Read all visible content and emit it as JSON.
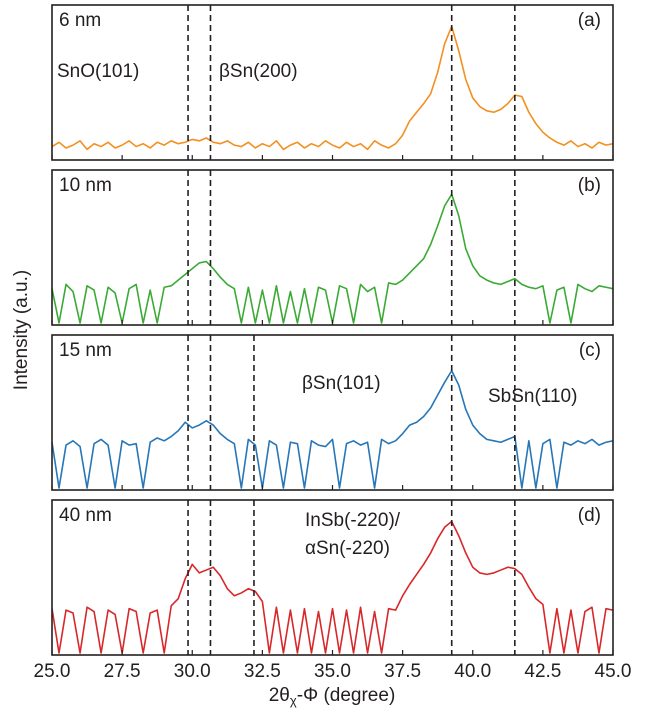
{
  "ylabel": "Intensity (a.u.)",
  "xlabel": {
    "main": "2θ",
    "sub": "χ",
    "rest": "-Φ (degree)"
  },
  "chart_data": [
    {
      "type": "line",
      "label": "6 nm",
      "tag": "(a)",
      "annotations": [
        "SnO(101)",
        "βSn(200)"
      ],
      "vlines": [
        29.85,
        30.65,
        39.25,
        41.5
      ],
      "xlim": [
        25,
        45
      ],
      "ylim": [
        0,
        100
      ],
      "x": [
        25,
        25.25,
        25.5,
        25.75,
        26,
        26.25,
        26.5,
        26.75,
        27,
        27.25,
        27.5,
        27.75,
        28,
        28.25,
        28.5,
        28.75,
        29,
        29.25,
        29.5,
        29.75,
        30,
        30.25,
        30.5,
        30.75,
        31,
        31.25,
        31.5,
        31.75,
        32,
        32.25,
        32.5,
        32.75,
        33,
        33.25,
        33.5,
        33.75,
        34,
        34.25,
        34.5,
        34.75,
        35,
        35.25,
        35.5,
        35.75,
        36,
        36.25,
        36.5,
        36.75,
        37,
        37.25,
        37.5,
        37.75,
        38,
        38.25,
        38.5,
        38.75,
        39,
        39.25,
        39.5,
        39.75,
        40,
        40.25,
        40.5,
        40.75,
        41,
        41.25,
        41.5,
        41.75,
        42,
        42.25,
        42.5,
        42.75,
        43,
        43.25,
        43.5,
        43.75,
        44,
        44.25,
        44.5,
        44.75,
        45
      ],
      "series": [
        {
          "name": "6 nm",
          "color": "#f39021",
          "values": [
            8,
            11,
            7,
            9,
            12,
            6,
            10,
            8,
            11,
            7,
            9,
            12,
            8,
            10,
            7,
            11,
            9,
            12,
            10,
            11,
            13,
            12,
            14,
            11,
            10,
            12,
            9,
            8,
            11,
            7,
            10,
            8,
            12,
            6,
            9,
            11,
            7,
            10,
            8,
            12,
            9,
            7,
            11,
            8,
            10,
            6,
            12,
            9,
            7,
            10,
            16,
            26,
            32,
            38,
            45,
            60,
            80,
            92,
            75,
            55,
            42,
            36,
            33,
            32,
            34,
            38,
            44,
            43,
            32,
            24,
            18,
            14,
            11,
            9,
            12,
            8,
            10,
            7,
            11,
            9,
            10
          ]
        }
      ]
    },
    {
      "type": "line",
      "label": "10 nm",
      "tag": "(b)",
      "annotations": [],
      "vlines": [
        29.85,
        30.65,
        39.25,
        41.5
      ],
      "xlim": [
        25,
        45
      ],
      "ylim": [
        0,
        100
      ],
      "x": [
        25,
        25.25,
        25.5,
        25.75,
        26,
        26.25,
        26.5,
        26.75,
        27,
        27.25,
        27.5,
        27.75,
        28,
        28.25,
        28.5,
        28.75,
        29,
        29.25,
        29.5,
        29.75,
        30,
        30.25,
        30.5,
        30.75,
        31,
        31.25,
        31.5,
        31.75,
        32,
        32.25,
        32.5,
        32.75,
        33,
        33.25,
        33.5,
        33.75,
        34,
        34.25,
        34.5,
        34.75,
        35,
        35.25,
        35.5,
        35.75,
        36,
        36.25,
        36.5,
        36.75,
        37,
        37.25,
        37.5,
        37.75,
        38,
        38.25,
        38.5,
        38.75,
        39,
        39.25,
        39.5,
        39.75,
        40,
        40.25,
        40.5,
        40.75,
        41,
        41.25,
        41.5,
        41.75,
        42,
        42.25,
        42.5,
        42.75,
        43,
        43.25,
        43.5,
        43.75,
        44,
        44.25,
        44.5,
        44.75,
        45
      ],
      "series": [
        {
          "name": "10 nm",
          "color": "#3aaa35",
          "values": [
            24,
            0,
            27,
            22,
            0,
            26,
            23,
            0,
            25,
            21,
            0,
            24,
            27,
            0,
            23,
            0,
            25,
            26,
            30,
            34,
            38,
            42,
            43,
            38,
            32,
            27,
            24,
            0,
            25,
            0,
            23,
            0,
            26,
            0,
            22,
            0,
            24,
            0,
            25,
            23,
            0,
            26,
            24,
            0,
            27,
            22,
            25,
            0,
            28,
            27,
            30,
            35,
            40,
            45,
            55,
            68,
            82,
            90,
            75,
            52,
            40,
            33,
            30,
            28,
            27,
            29,
            31,
            27,
            25,
            24,
            26,
            0,
            23,
            25,
            0,
            27,
            24,
            22,
            26,
            25,
            24
          ]
        }
      ]
    },
    {
      "type": "line",
      "label": "15 nm",
      "tag": "(c)",
      "annotations": [
        "βSn(101)",
        "SbSn(110)"
      ],
      "vlines": [
        29.85,
        30.65,
        32.2,
        39.25,
        41.5
      ],
      "xlim": [
        25,
        45
      ],
      "ylim": [
        0,
        100
      ],
      "x": [
        25,
        25.25,
        25.5,
        25.75,
        26,
        26.25,
        26.5,
        26.75,
        27,
        27.25,
        27.5,
        27.75,
        28,
        28.25,
        28.5,
        28.75,
        29,
        29.25,
        29.5,
        29.75,
        30,
        30.25,
        30.5,
        30.75,
        31,
        31.25,
        31.5,
        31.75,
        32,
        32.25,
        32.5,
        32.75,
        33,
        33.25,
        33.5,
        33.75,
        34,
        34.25,
        34.5,
        34.75,
        35,
        35.25,
        35.5,
        35.75,
        36,
        36.25,
        36.5,
        36.75,
        37,
        37.25,
        37.5,
        37.75,
        38,
        38.25,
        38.5,
        38.75,
        39,
        39.25,
        39.5,
        39.75,
        40,
        40.25,
        40.5,
        40.75,
        41,
        41.25,
        41.5,
        41.75,
        42,
        42.25,
        42.5,
        42.75,
        43,
        43.25,
        43.5,
        43.75,
        44,
        44.25,
        44.5,
        44.75,
        45
      ],
      "series": [
        {
          "name": "15 nm",
          "color": "#2776b8",
          "values": [
            32,
            0,
            30,
            33,
            29,
            0,
            31,
            34,
            30,
            0,
            33,
            30,
            31,
            0,
            32,
            35,
            33,
            36,
            40,
            46,
            42,
            44,
            47,
            44,
            38,
            34,
            31,
            0,
            34,
            30,
            0,
            33,
            30,
            0,
            32,
            31,
            0,
            33,
            30,
            29,
            34,
            0,
            31,
            33,
            30,
            32,
            0,
            34,
            31,
            33,
            38,
            44,
            46,
            50,
            56,
            65,
            74,
            82,
            72,
            55,
            44,
            38,
            34,
            33,
            32,
            34,
            36,
            0,
            33,
            0,
            31,
            34,
            0,
            32,
            30,
            33,
            31,
            34,
            30,
            32,
            33
          ]
        }
      ]
    },
    {
      "type": "line",
      "label": "40 nm",
      "tag": "(d)",
      "annotations": [
        "InSb(-220)/",
        "αSn(-220)"
      ],
      "vlines": [
        29.85,
        30.65,
        32.2,
        39.25,
        41.5
      ],
      "xlim": [
        25,
        45
      ],
      "ylim": [
        0,
        100
      ],
      "xticks": [
        {
          "value": 25,
          "label": "25.0"
        },
        {
          "value": 27.5,
          "label": "27.5"
        },
        {
          "value": 30,
          "label": "30.0"
        },
        {
          "value": 32.5,
          "label": "32.5"
        },
        {
          "value": 35,
          "label": "35.0"
        },
        {
          "value": 37.5,
          "label": "37.5"
        },
        {
          "value": 40,
          "label": "40.0"
        },
        {
          "value": 42.5,
          "label": "42.5"
        },
        {
          "value": 45,
          "label": "45.0"
        }
      ],
      "x": [
        25,
        25.25,
        25.5,
        25.75,
        26,
        26.25,
        26.5,
        26.75,
        27,
        27.25,
        27.5,
        27.75,
        28,
        28.25,
        28.5,
        28.75,
        29,
        29.25,
        29.5,
        29.75,
        30,
        30.25,
        30.5,
        30.75,
        31,
        31.25,
        31.5,
        31.75,
        32,
        32.25,
        32.5,
        32.75,
        33,
        33.25,
        33.5,
        33.75,
        34,
        34.25,
        34.5,
        34.75,
        35,
        35.25,
        35.5,
        35.75,
        36,
        36.25,
        36.5,
        36.75,
        37,
        37.25,
        37.5,
        37.75,
        38,
        38.25,
        38.5,
        38.75,
        39,
        39.25,
        39.5,
        39.75,
        40,
        40.25,
        40.5,
        40.75,
        41,
        41.25,
        41.5,
        41.75,
        42,
        42.25,
        42.5,
        42.75,
        43,
        43.25,
        43.5,
        43.75,
        44,
        44.25,
        44.5,
        44.75,
        45
      ],
      "series": [
        {
          "name": "40 nm",
          "color": "#d7282a",
          "values": [
            31,
            0,
            30,
            28,
            0,
            32,
            29,
            0,
            30,
            27,
            0,
            31,
            29,
            0,
            28,
            30,
            0,
            33,
            38,
            52,
            62,
            56,
            58,
            60,
            54,
            45,
            40,
            42,
            45,
            43,
            36,
            0,
            32,
            0,
            30,
            0,
            31,
            0,
            29,
            0,
            31,
            0,
            30,
            0,
            32,
            0,
            29,
            0,
            31,
            30,
            40,
            48,
            55,
            62,
            70,
            80,
            88,
            92,
            82,
            70,
            60,
            56,
            55,
            56,
            58,
            60,
            59,
            55,
            46,
            38,
            34,
            0,
            31,
            0,
            30,
            0,
            29,
            32,
            0,
            31,
            30
          ]
        }
      ]
    }
  ]
}
